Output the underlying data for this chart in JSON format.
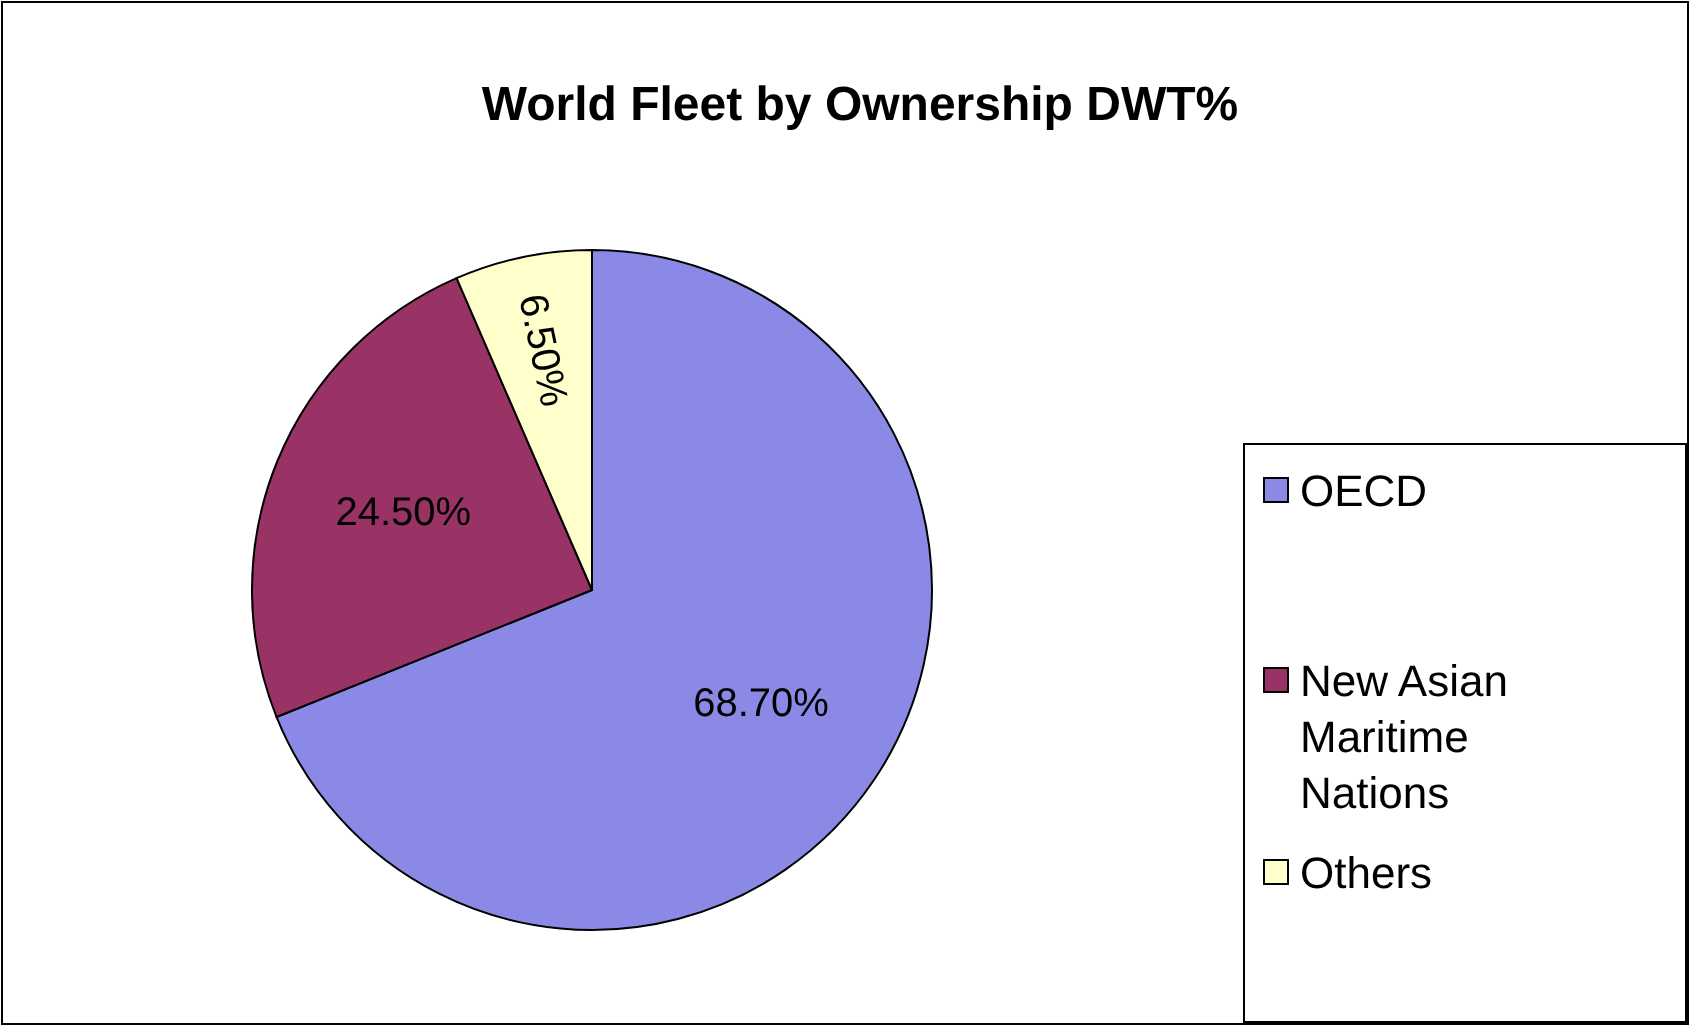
{
  "chart_data": {
    "type": "pie",
    "title": "World Fleet by Ownership DWT%",
    "categories": [
      "OECD",
      "New Asian Maritime Nations",
      "Others"
    ],
    "values": [
      68.7,
      24.5,
      6.5
    ],
    "value_labels": [
      "68.70%",
      "24.50%",
      "6.50%"
    ],
    "colors": [
      "#8a8ae6",
      "#993366",
      "#ffffcc"
    ],
    "legend": "right"
  }
}
